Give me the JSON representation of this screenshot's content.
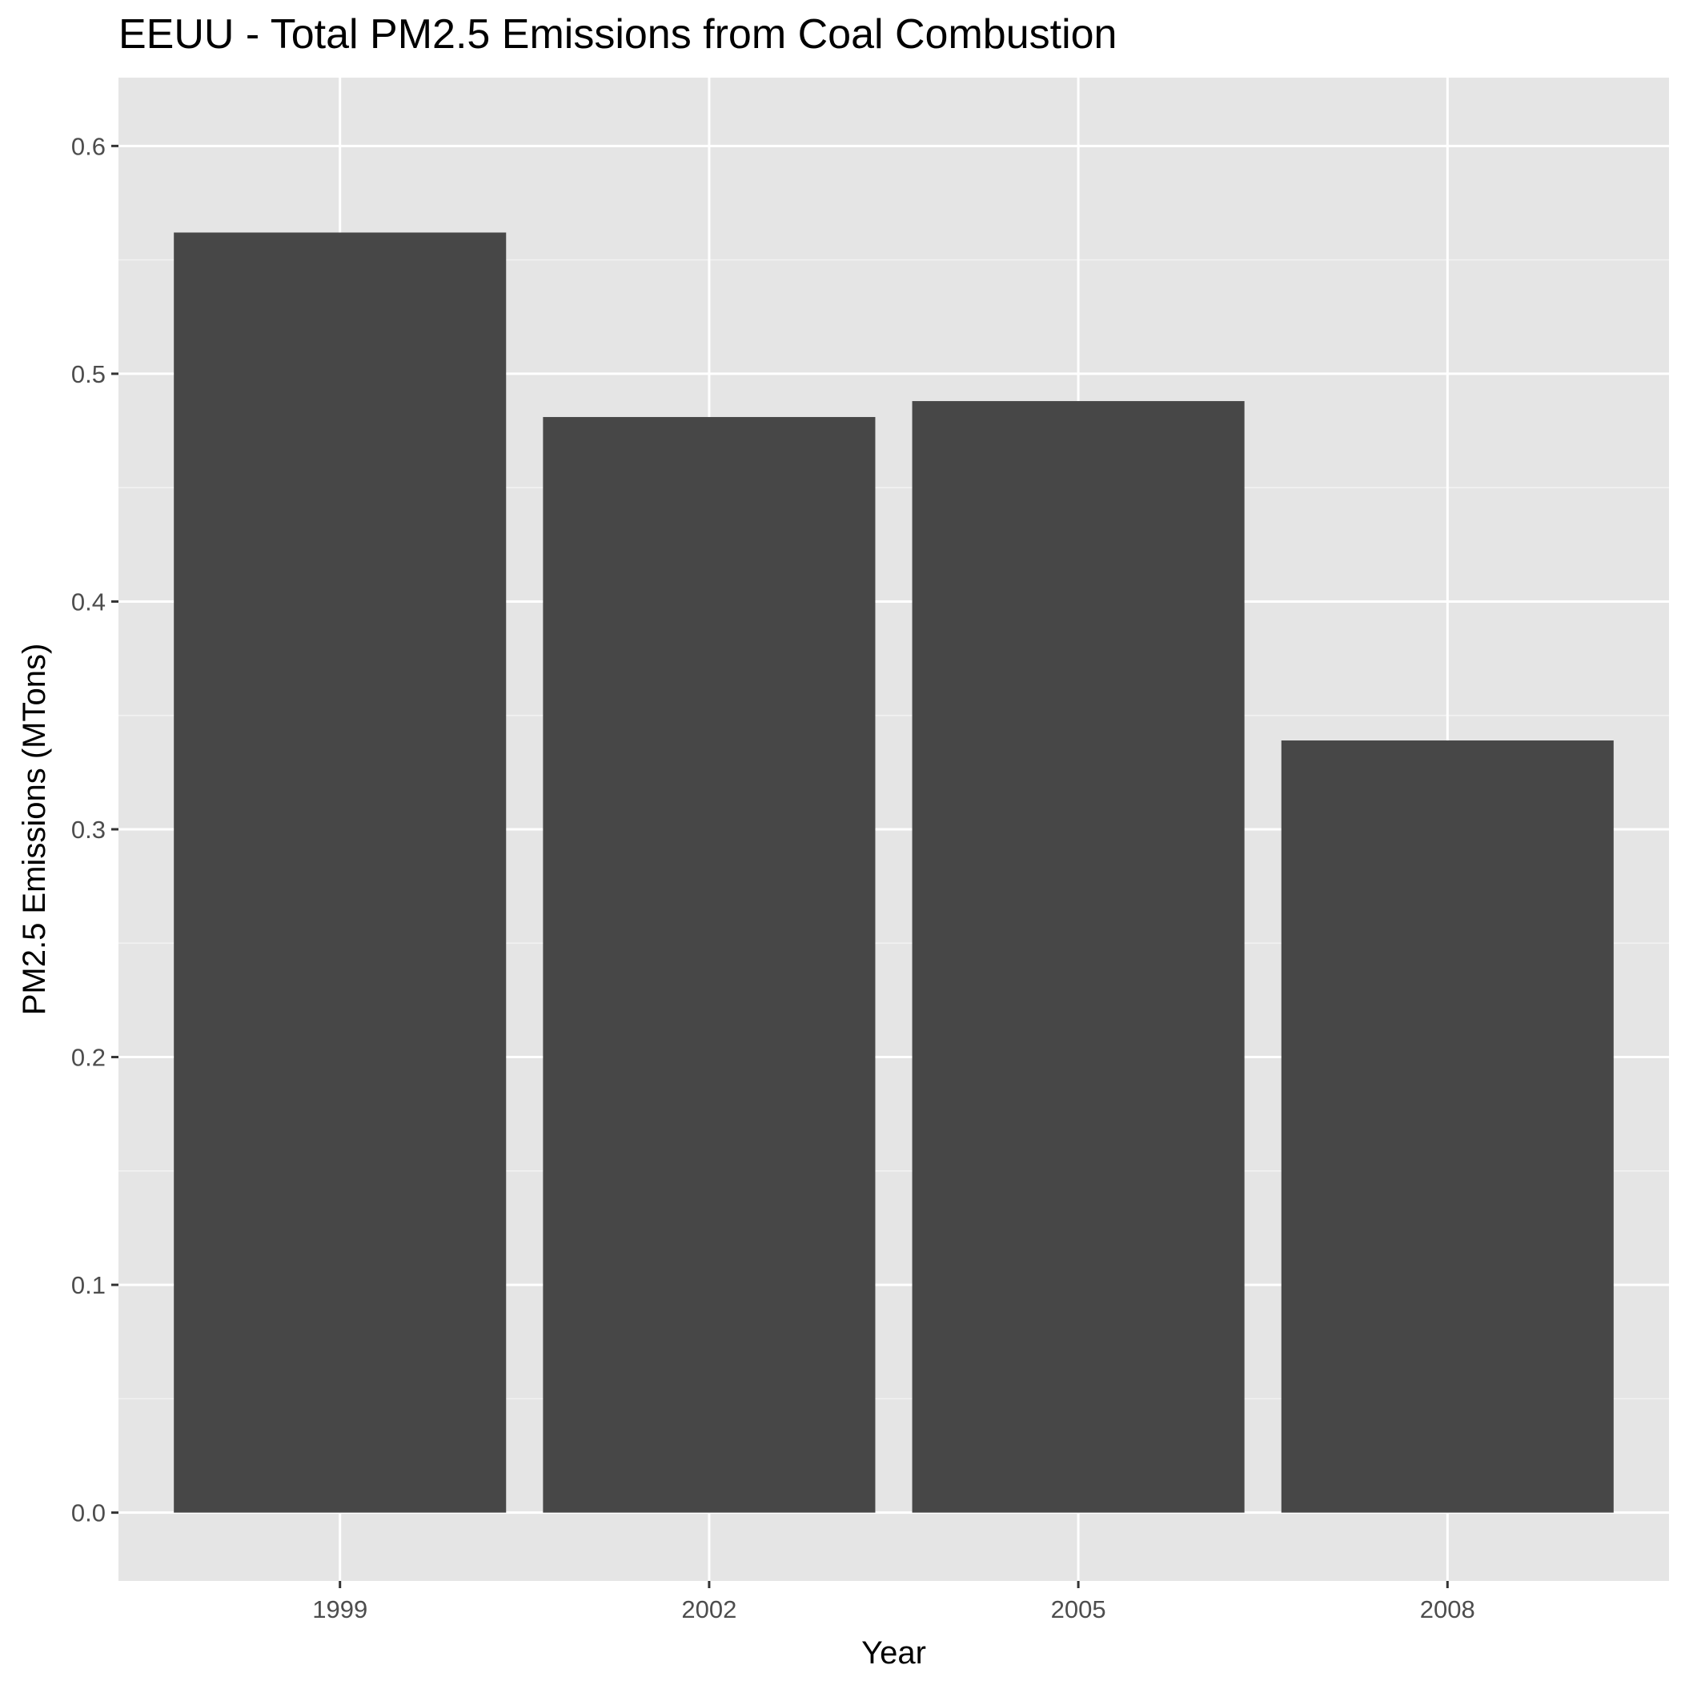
{
  "chart_data": {
    "type": "bar",
    "title": "EEUU - Total PM2.5 Emissions from Coal Combustion",
    "xlabel": "Year",
    "ylabel": "PM2.5 Emissions (MTons)",
    "categories": [
      "1999",
      "2002",
      "2005",
      "2008"
    ],
    "values": [
      0.562,
      0.481,
      0.488,
      0.339
    ],
    "ylim": [
      -0.03,
      0.63
    ],
    "yticks": [
      0.0,
      0.1,
      0.2,
      0.3,
      0.4,
      0.5,
      0.6
    ],
    "ytick_labels": [
      "0.0",
      "0.1",
      "0.2",
      "0.3",
      "0.4",
      "0.5",
      "0.6"
    ],
    "grid": true,
    "legend": "none",
    "colors": {
      "bar": "#474747",
      "panel_background": "#e5e5e5",
      "grid_major": "#ffffff",
      "grid_minor": "#f2f2f2",
      "tick_label": "#4d4d4d",
      "tick_mark": "#333333"
    }
  }
}
